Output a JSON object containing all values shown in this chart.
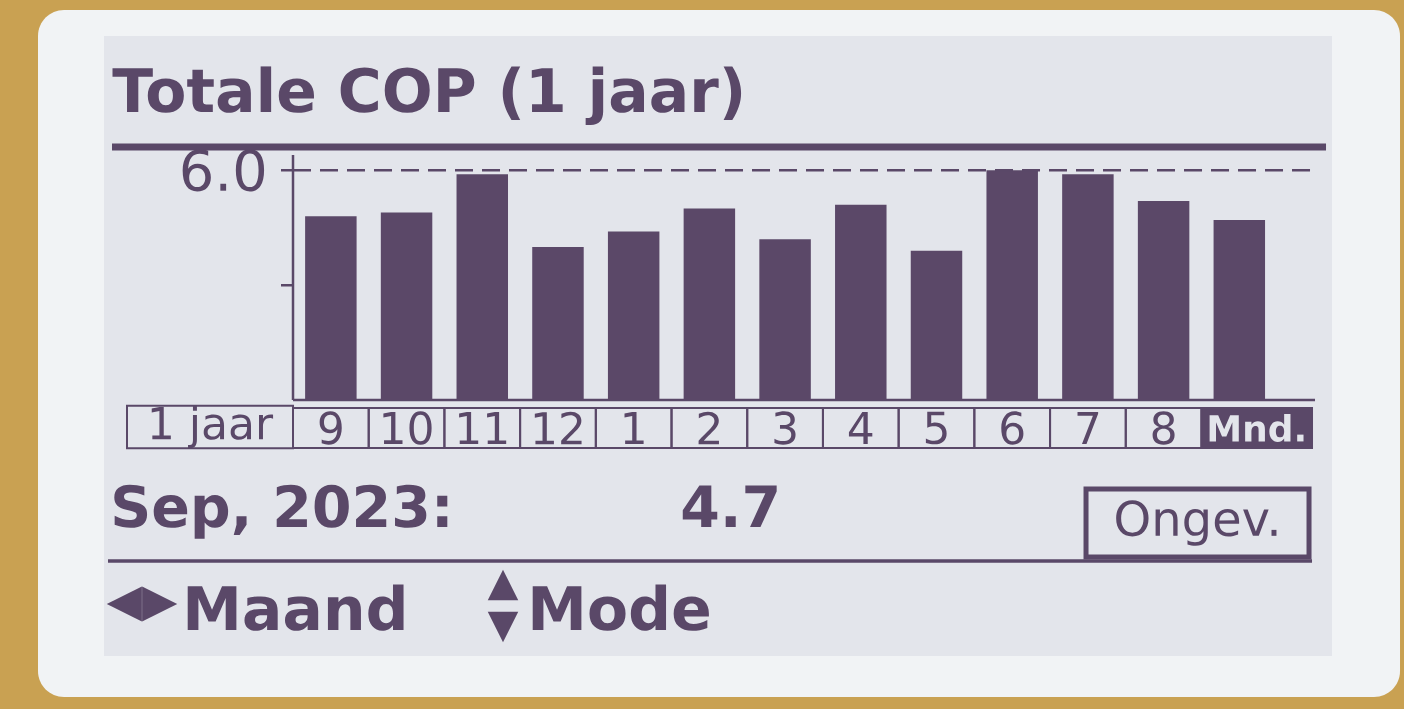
{
  "chart_data": {
    "type": "bar",
    "title": "Totale COP (1 jaar)",
    "categories": [
      "9",
      "10",
      "11",
      "12",
      "1",
      "2",
      "3",
      "4",
      "5",
      "6",
      "7",
      "8",
      "Mnd."
    ],
    "values": [
      4.8,
      4.9,
      5.9,
      4.0,
      4.4,
      5.0,
      4.2,
      5.1,
      3.9,
      6.0,
      5.9,
      5.2,
      4.7
    ],
    "color": "#5b4868",
    "ylim": [
      0,
      6.4
    ],
    "yticks": [
      {
        "value": 3,
        "label": null
      },
      {
        "value": 6,
        "label": "6.0"
      }
    ],
    "ref_lines": [
      {
        "axis": "y",
        "value": 6,
        "line_style": "dashed"
      }
    ],
    "annotations": [
      "1 jaar",
      "Sep, 2023:",
      "4.7",
      "Ongev.",
      "◀▶",
      "Maand",
      "▲",
      "▼",
      "Mode"
    ]
  }
}
